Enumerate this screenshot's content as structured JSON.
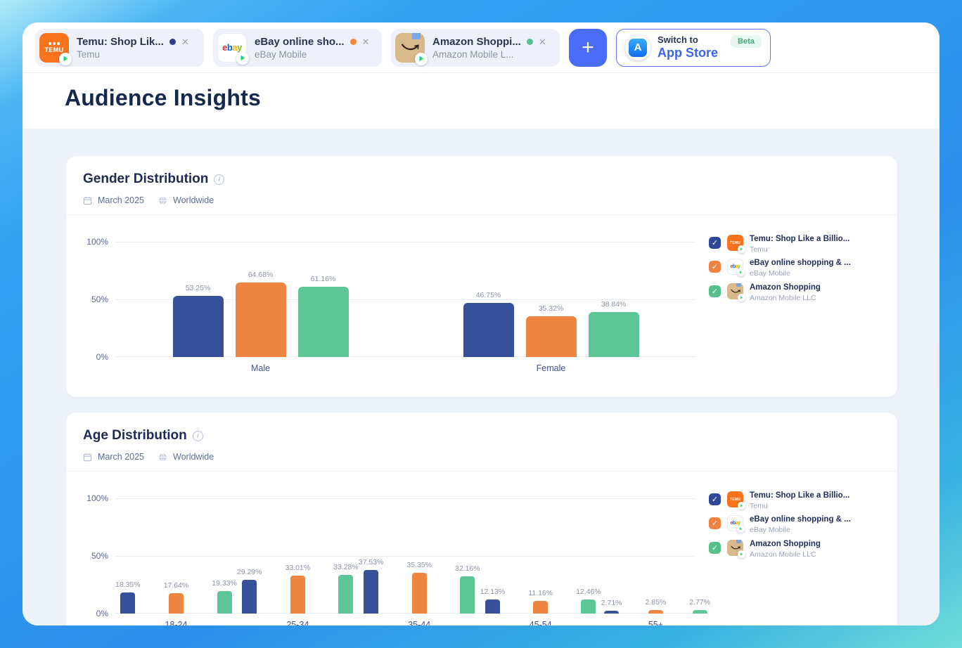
{
  "page_title": "Audience Insights",
  "glyphs": {
    "close": "✕",
    "check": "✓",
    "info": "i",
    "app_store": "A"
  },
  "colors": {
    "accent_blue": "#4a6cf7",
    "switch_border_blue": "#5b78f6",
    "beta_green": "#46a878",
    "content_background": "#edf1f8"
  },
  "tab_bar": {
    "add_button_label": "+",
    "tabs": [
      {
        "title": "Temu: Shop Lik...",
        "subtitle": "Temu",
        "dot_color": "#2d3f87",
        "icon_text": "TEMU"
      },
      {
        "title": "eBay online sho...",
        "subtitle": "eBay Mobile",
        "dot_color": "#f58a3c",
        "icon_letters": [
          "e",
          "b",
          "a",
          "y"
        ]
      },
      {
        "title": "Amazon Shoppi...",
        "subtitle": "Amazon Mobile L...",
        "dot_color": "#53c08f"
      }
    ],
    "switch_store": {
      "line1": "Switch to",
      "line2": "App Store",
      "badge": "Beta"
    }
  },
  "legend": [
    {
      "name": "Temu: Shop Like a Billio...",
      "subtitle": "Temu",
      "color": "#2d4799",
      "icon_text": "TEMU"
    },
    {
      "name": "eBay online shopping & ...",
      "subtitle": "eBay Mobile",
      "color": "#f0823f",
      "icon_letters": [
        "e",
        "b",
        "a",
        "y"
      ]
    },
    {
      "name": "Amazon Shopping",
      "subtitle": "Amazon Mobile LLC",
      "color": "#55c08b"
    }
  ],
  "chart_data": [
    {
      "type": "bar",
      "title": "Gender Distribution",
      "date_label": "March 2025",
      "region_label": "Worldwide",
      "categories": [
        "Male",
        "Female"
      ],
      "series": [
        {
          "name": "Temu: Shop Like a Billio...",
          "publisher": "Temu",
          "short": "temu",
          "color": "#37509b",
          "values": [
            53.25,
            46.75
          ]
        },
        {
          "name": "eBay online shopping & ...",
          "publisher": "eBay Mobile",
          "short": "ebay",
          "color": "#ee8540",
          "values": [
            64.68,
            35.32
          ]
        },
        {
          "name": "Amazon Shopping",
          "publisher": "Amazon Mobile LLC",
          "short": "amazon",
          "color": "#5cc795",
          "values": [
            61.16,
            38.84
          ]
        }
      ],
      "ylim": [
        0,
        100
      ],
      "yticks": [
        "100%",
        "50%",
        "0%"
      ],
      "value_suffix": "%",
      "grid": true,
      "legend_position": "right"
    },
    {
      "type": "bar",
      "title": "Age Distribution",
      "date_label": "March 2025",
      "region_label": "Worldwide",
      "categories": [
        "18-24",
        "25-34",
        "35-44",
        "45-54",
        "55+"
      ],
      "series": [
        {
          "name": "Temu: Shop Like a Billio...",
          "publisher": "Temu",
          "short": "temu",
          "color": "#37509b",
          "values": [
            18.35,
            29.29,
            37.53,
            12.13,
            2.71
          ]
        },
        {
          "name": "eBay online shopping & ...",
          "publisher": "eBay Mobile",
          "short": "ebay",
          "color": "#ee8540",
          "values": [
            17.64,
            33.01,
            35.35,
            11.16,
            2.85
          ]
        },
        {
          "name": "Amazon Shopping",
          "publisher": "Amazon Mobile LLC",
          "short": "amazon",
          "color": "#5cc795",
          "values": [
            19.33,
            33.28,
            32.16,
            12.46,
            2.77
          ]
        }
      ],
      "ylim": [
        0,
        100
      ],
      "yticks": [
        "100%",
        "50%",
        "0%"
      ],
      "value_suffix": "%",
      "grid": true,
      "legend_position": "right"
    }
  ]
}
